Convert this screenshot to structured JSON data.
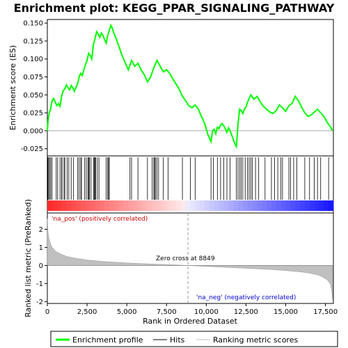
{
  "chart_data": {
    "type": "line",
    "title": "Enrichment plot: KEGG_PPAR_SIGNALING_PATHWAY",
    "top_panel": {
      "ylabel": "Enrichment score (ES)",
      "ylim": [
        -0.035,
        0.155
      ],
      "yticks": [
        -0.025,
        0.0,
        0.025,
        0.05,
        0.075,
        0.1,
        0.125,
        0.15
      ],
      "ytick_labels": [
        "-0.025",
        "0.000",
        "0.025",
        "0.050",
        "0.075",
        "0.100",
        "0.125",
        "0.150"
      ],
      "series": [
        {
          "name": "Enrichment profile",
          "color": "#00ff00",
          "x": [
            0,
            50,
            120,
            200,
            300,
            400,
            500,
            600,
            700,
            800,
            900,
            1000,
            1100,
            1200,
            1300,
            1400,
            1500,
            1600,
            1700,
            1800,
            1900,
            2000,
            2100,
            2200,
            2300,
            2400,
            2500,
            2600,
            2700,
            2800,
            2900,
            3000,
            3100,
            3200,
            3300,
            3400,
            3500,
            3600,
            3700,
            3800,
            3900,
            4000,
            4100,
            4200,
            4300,
            4500,
            4700,
            4900,
            5100,
            5300,
            5500,
            5700,
            5900,
            6100,
            6300,
            6500,
            6700,
            6900,
            7100,
            7300,
            7500,
            7700,
            7900,
            8100,
            8300,
            8500,
            8700,
            8900,
            9100,
            9300,
            9500,
            9700,
            9900,
            10100,
            10300,
            10400,
            10500,
            10600,
            10700,
            10800,
            10900,
            11000,
            11100,
            11200,
            11300,
            11400,
            11500,
            11600,
            11700,
            11800,
            11900,
            12000,
            12100,
            12200,
            12300,
            12400,
            12500,
            12600,
            12700,
            12800,
            12900,
            13000,
            13200,
            13400,
            13600,
            13800,
            14000,
            14200,
            14400,
            14600,
            14800,
            15000,
            15200,
            15400,
            15600,
            15800,
            16000,
            16200,
            16400,
            16600,
            16800,
            17000,
            17200,
            17400,
            17600,
            17800,
            17950
          ],
          "y": [
            0.0,
            0.015,
            0.025,
            0.03,
            0.042,
            0.045,
            0.04,
            0.035,
            0.038,
            0.034,
            0.048,
            0.056,
            0.058,
            0.064,
            0.06,
            0.057,
            0.063,
            0.06,
            0.055,
            0.06,
            0.065,
            0.075,
            0.08,
            0.077,
            0.085,
            0.092,
            0.098,
            0.108,
            0.105,
            0.1,
            0.12,
            0.128,
            0.138,
            0.135,
            0.13,
            0.136,
            0.133,
            0.127,
            0.122,
            0.133,
            0.14,
            0.147,
            0.142,
            0.135,
            0.13,
            0.118,
            0.105,
            0.095,
            0.085,
            0.098,
            0.09,
            0.094,
            0.085,
            0.078,
            0.068,
            0.075,
            0.088,
            0.098,
            0.09,
            0.082,
            0.085,
            0.08,
            0.072,
            0.065,
            0.058,
            0.048,
            0.042,
            0.035,
            0.032,
            0.036,
            0.03,
            0.02,
            0.01,
            -0.005,
            -0.015,
            0.0,
            0.002,
            -0.004,
            0.005,
            0.003,
            0.008,
            0.01,
            0.007,
            0.003,
            -0.002,
            0.004,
            0.0,
            -0.006,
            -0.012,
            -0.018,
            -0.022,
            0.01,
            0.03,
            0.028,
            0.024,
            0.03,
            0.033,
            0.04,
            0.045,
            0.05,
            0.047,
            0.044,
            0.048,
            0.04,
            0.034,
            0.03,
            0.026,
            0.024,
            0.028,
            0.036,
            0.032,
            0.027,
            0.035,
            0.038,
            0.048,
            0.042,
            0.033,
            0.025,
            0.02,
            0.022,
            0.026,
            0.03,
            0.025,
            0.02,
            0.012,
            0.006,
            0.0
          ]
        }
      ]
    },
    "hits_panel": {
      "name": "Hits",
      "hit_ranks": [
        40,
        80,
        150,
        220,
        300,
        560,
        650,
        800,
        900,
        920,
        1050,
        1100,
        1250,
        1350,
        1500,
        1650,
        1900,
        2000,
        2100,
        2150,
        2350,
        2450,
        2550,
        2600,
        2650,
        2750,
        2900,
        2950,
        3000,
        3050,
        3150,
        3250,
        3700,
        3800,
        3850,
        3900,
        5200,
        5300,
        5700,
        6300,
        6600,
        6700,
        6750,
        6800,
        6900,
        7000,
        7300,
        7600,
        8500,
        9000,
        9300,
        10300,
        10450,
        10700,
        10900,
        11100,
        11300,
        11500,
        11900,
        12000,
        12100,
        12200,
        12300,
        12450,
        12600,
        12700,
        12800,
        12900,
        13100,
        13300,
        13700,
        14100,
        14300,
        14500,
        14700,
        14800,
        15200,
        15300,
        15500,
        15700,
        16200,
        16500,
        16800,
        17000,
        17200,
        17700
      ]
    },
    "ranked_panel": {
      "name": "Ranking metric scores",
      "ylabel": "Ranked list metric (PreRanked)",
      "ylim": [
        -2.1,
        2.9
      ],
      "yticks": [
        -2,
        -1,
        0,
        1,
        2
      ],
      "ytick_labels": [
        "-2",
        "-1",
        "0",
        "1",
        "2"
      ],
      "x": [
        0,
        20,
        50,
        100,
        200,
        300,
        500,
        800,
        1200,
        1800,
        2500,
        3500,
        5000,
        6500,
        8000,
        8849,
        10000,
        12000,
        14000,
        15000,
        16000,
        16500,
        17000,
        17300,
        17600,
        17800,
        17900,
        17950
      ],
      "y": [
        2.6,
        2.2,
        1.8,
        1.5,
        1.2,
        1.0,
        0.8,
        0.65,
        0.5,
        0.4,
        0.3,
        0.22,
        0.14,
        0.08,
        0.03,
        0.0,
        -0.05,
        -0.14,
        -0.22,
        -0.28,
        -0.36,
        -0.42,
        -0.52,
        -0.62,
        -0.78,
        -1.0,
        -1.4,
        -1.9
      ],
      "zero_cross_label": "Zero cross at 8849",
      "zero_cross": 8849,
      "pos_label": "'na_pos' (positively correlated)",
      "neg_label": "'na_neg' (negatively correlated)"
    },
    "xaxis": {
      "xlabel": "Rank in Ordered Dataset",
      "xlim": [
        0,
        18000
      ],
      "xticks": [
        0,
        2500,
        5000,
        7500,
        10000,
        12500,
        15000,
        17500
      ],
      "xtick_labels": [
        "0",
        "2,500",
        "5,000",
        "7,500",
        "10,000",
        "12,500",
        "15,000",
        "17,500"
      ]
    },
    "legend": {
      "placement": "bottom",
      "entries": [
        {
          "label": "Enrichment profile",
          "color": "#00ff00"
        },
        {
          "label": "Hits",
          "color": "#000000"
        },
        {
          "label": "Ranking metric scores",
          "color": "#c0c0c0"
        }
      ]
    },
    "colors": {
      "profile": "#00ff00",
      "pos_text": "#cc0000",
      "neg_text": "#0000cc",
      "metric_fill": "#c0c0c0",
      "zero_line": "#999999"
    }
  }
}
